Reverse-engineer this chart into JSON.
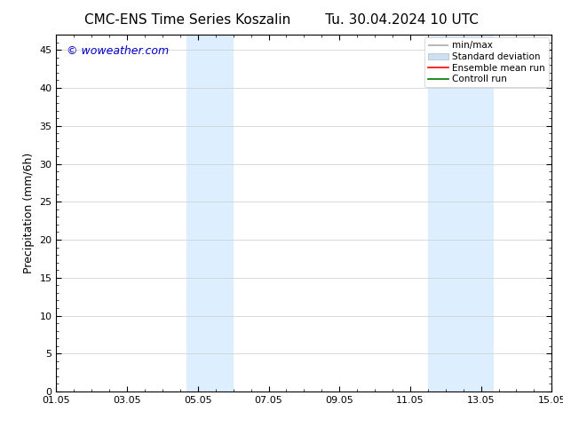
{
  "title_left": "CMC-ENS Time Series Koszalin",
  "title_right": "Tu. 30.04.2024 10 UTC",
  "ylabel": "Precipitation (mm/6h)",
  "xlim_num": [
    0,
    14
  ],
  "ylim": [
    0,
    47
  ],
  "yticks": [
    0,
    5,
    10,
    15,
    20,
    25,
    30,
    35,
    40,
    45
  ],
  "xtick_positions": [
    0,
    2,
    4,
    6,
    8,
    10,
    12,
    14
  ],
  "xtick_labels": [
    "01.05",
    "03.05",
    "05.05",
    "07.05",
    "09.05",
    "11.05",
    "13.05",
    "15.05"
  ],
  "shaded_regions": [
    {
      "xmin": 3.67,
      "xmax": 4.99,
      "color": "#ddeeff"
    },
    {
      "xmin": 10.5,
      "xmax": 12.33,
      "color": "#ddeeff"
    }
  ],
  "legend_entries": [
    {
      "label": "min/max"
    },
    {
      "label": "Standard deviation"
    },
    {
      "label": "Ensemble mean run"
    },
    {
      "label": "Controll run"
    }
  ],
  "watermark_text": "© woweather.com",
  "watermark_color": "#0000cc",
  "watermark_fontsize": 9,
  "title_fontsize": 11,
  "ylabel_fontsize": 9,
  "tick_fontsize": 8,
  "legend_fontsize": 7.5,
  "bg_color": "#ffffff",
  "plot_bg_color": "#ffffff",
  "grid_color": "#cccccc",
  "axis_color": "#000000",
  "minmax_color": "#aaaaaa",
  "stddev_color": "#cce0f0",
  "ensemble_color": "#ff0000",
  "control_color": "#007700"
}
